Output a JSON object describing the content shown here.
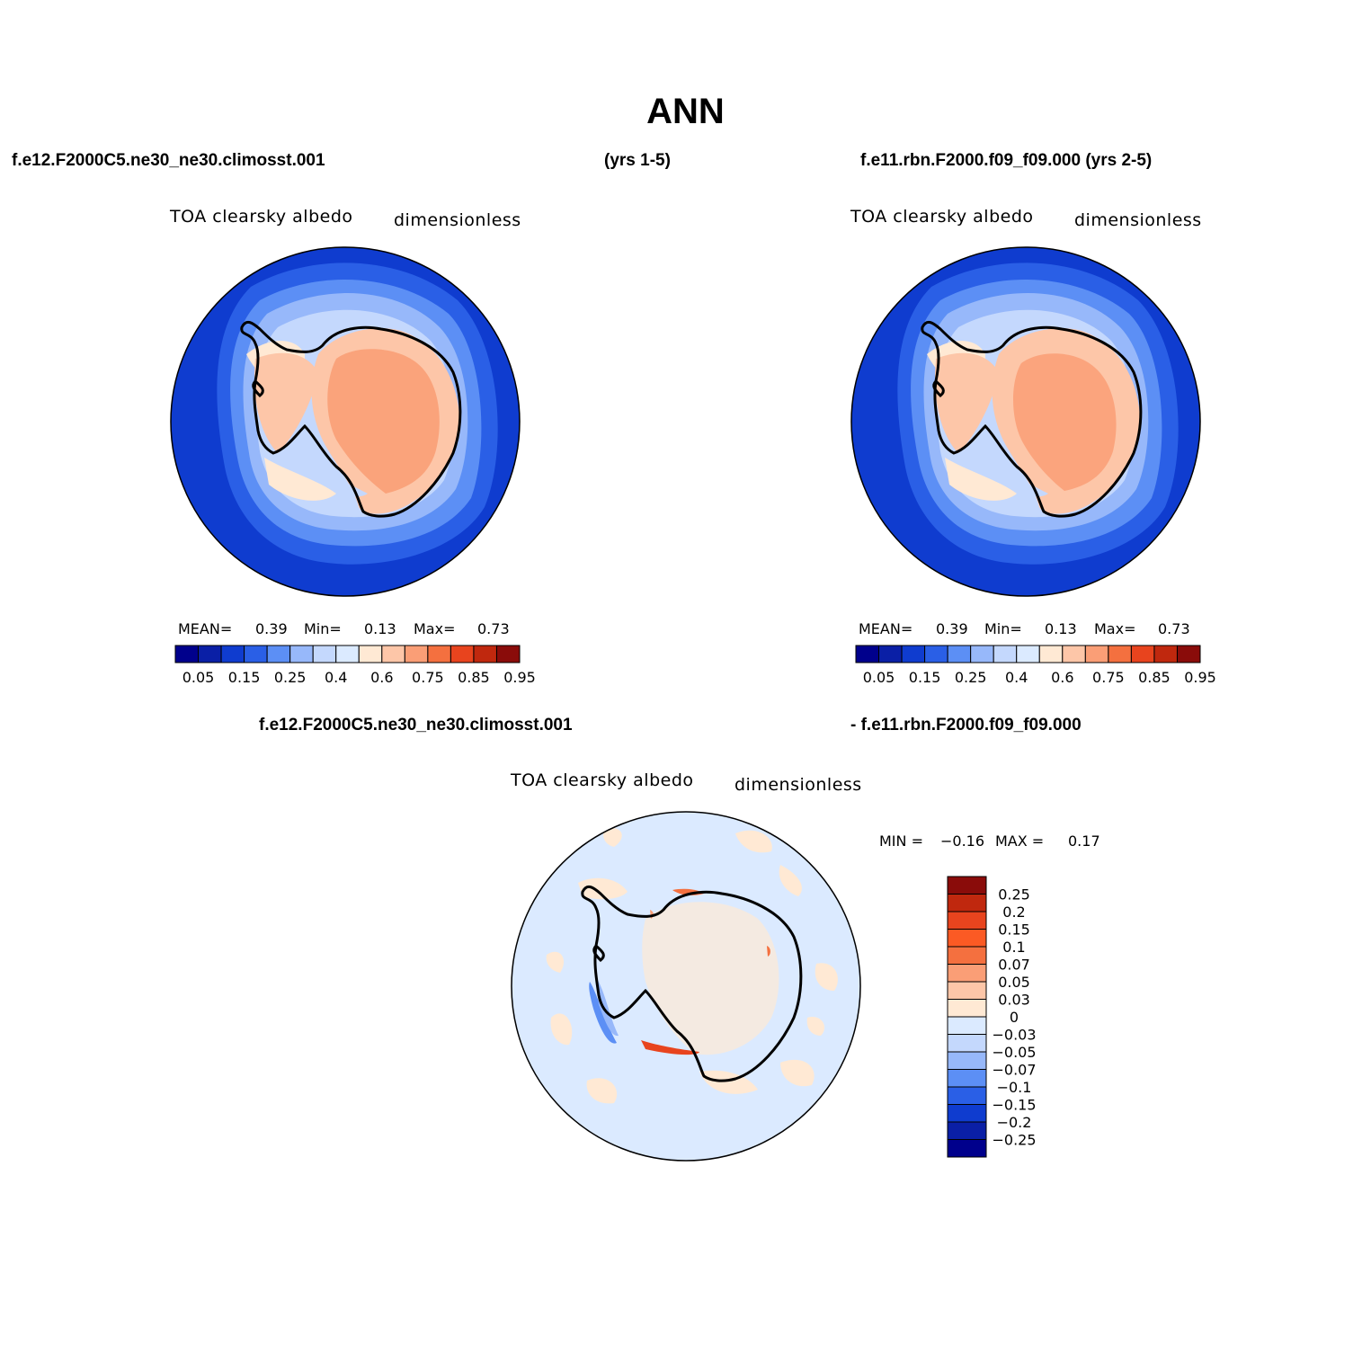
{
  "title": "ANN",
  "headers": {
    "case1": "f.e12.F2000C5.ne30_ne30.climosst.001",
    "case1_years": "(yrs 1-5)",
    "case2": "f.e11.rbn.F2000.f09_f09.000 (yrs 2-5)",
    "diff_case1": "f.e12.F2000C5.ne30_ne30.climosst.001",
    "diff_case2": "- f.e11.rbn.F2000.f09_f09.000"
  },
  "panels": [
    {
      "variable": "TOA clearsky albedo",
      "units": "dimensionless",
      "stats": {
        "mean_label": "MEAN=",
        "mean": "0.39",
        "min_label": "Min=",
        "min": "0.13",
        "max_label": "Max=",
        "max": "0.73"
      }
    },
    {
      "variable": "TOA clearsky albedo",
      "units": "dimensionless",
      "stats": {
        "mean_label": "MEAN=",
        "mean": "0.39",
        "min_label": "Min=",
        "min": "0.13",
        "max_label": "Max=",
        "max": "0.73"
      }
    },
    {
      "variable": "TOA clearsky albedo",
      "units": "dimensionless",
      "stats": {
        "min_label": "MIN =",
        "min": "−0.16",
        "max_label": "MAX =",
        "max": "0.17"
      }
    }
  ],
  "colorbar_abs": {
    "colors": [
      "#00008c",
      "#0a1fa6",
      "#0f3ccf",
      "#2a5fe6",
      "#5c8ff5",
      "#97b8fa",
      "#c4d8fd",
      "#dbeaff",
      "#ffe9d4",
      "#fdc6a8",
      "#fa9e76",
      "#f4703f",
      "#e8441e",
      "#c0280e",
      "#8a0c0a"
    ],
    "labels": [
      "0.05",
      "0.15",
      "0.25",
      "0.4",
      "0.6",
      "0.75",
      "0.85",
      "0.95"
    ]
  },
  "colorbar_diff": {
    "colors": [
      "#8a0c0a",
      "#c0280e",
      "#e8441e",
      "#fb5a24",
      "#f4703f",
      "#fa9e76",
      "#fdc6a8",
      "#ffe9d4",
      "#dbeaff",
      "#c4d8fd",
      "#97b8fa",
      "#5c8ff5",
      "#2a5fe6",
      "#0f3ccf",
      "#0a1fa6",
      "#00008c"
    ],
    "labels": [
      "0.25",
      "0.2",
      "0.15",
      "0.1",
      "0.07",
      "0.05",
      "0.03",
      "0",
      "−0.03",
      "−0.05",
      "−0.07",
      "−0.1",
      "−0.15",
      "−0.2",
      "−0.25"
    ]
  }
}
